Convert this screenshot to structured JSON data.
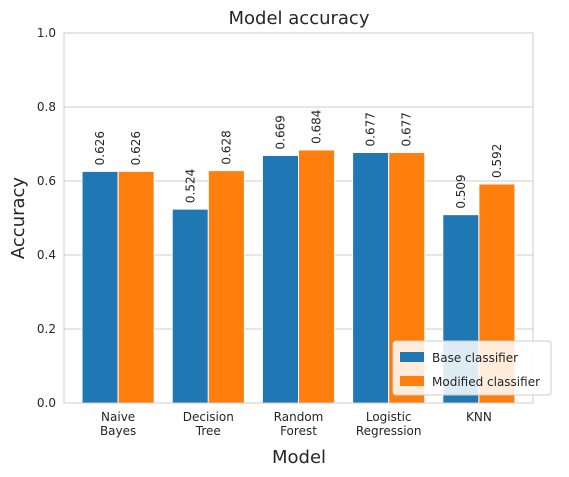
{
  "chart_data": {
    "type": "bar",
    "title": "Model accuracy",
    "xlabel": "Model",
    "ylabel": "Accuracy",
    "ylim": [
      0,
      1.0
    ],
    "yticks": [
      "0.0",
      "0.2",
      "0.4",
      "0.6",
      "0.8",
      "1.0"
    ],
    "categories": [
      [
        "Naive",
        "Bayes"
      ],
      [
        "Decision",
        "Tree"
      ],
      [
        "Random",
        "Forest"
      ],
      [
        "Logistic",
        "Regression"
      ],
      [
        "KNN"
      ]
    ],
    "series": [
      {
        "name": "Base classifier",
        "color": "#1f77b4",
        "values": [
          0.626,
          0.524,
          0.669,
          0.677,
          0.509
        ],
        "labels": [
          "0.626",
          "0.524",
          "0.669",
          "0.677",
          "0.509"
        ]
      },
      {
        "name": "Modified classifier",
        "color": "#ff7f0e",
        "values": [
          0.626,
          0.628,
          0.684,
          0.677,
          0.592
        ],
        "labels": [
          "0.626",
          "0.628",
          "0.684",
          "0.677",
          "0.592"
        ]
      }
    ],
    "grid": "horizontal",
    "legend_position": "lower-right"
  }
}
